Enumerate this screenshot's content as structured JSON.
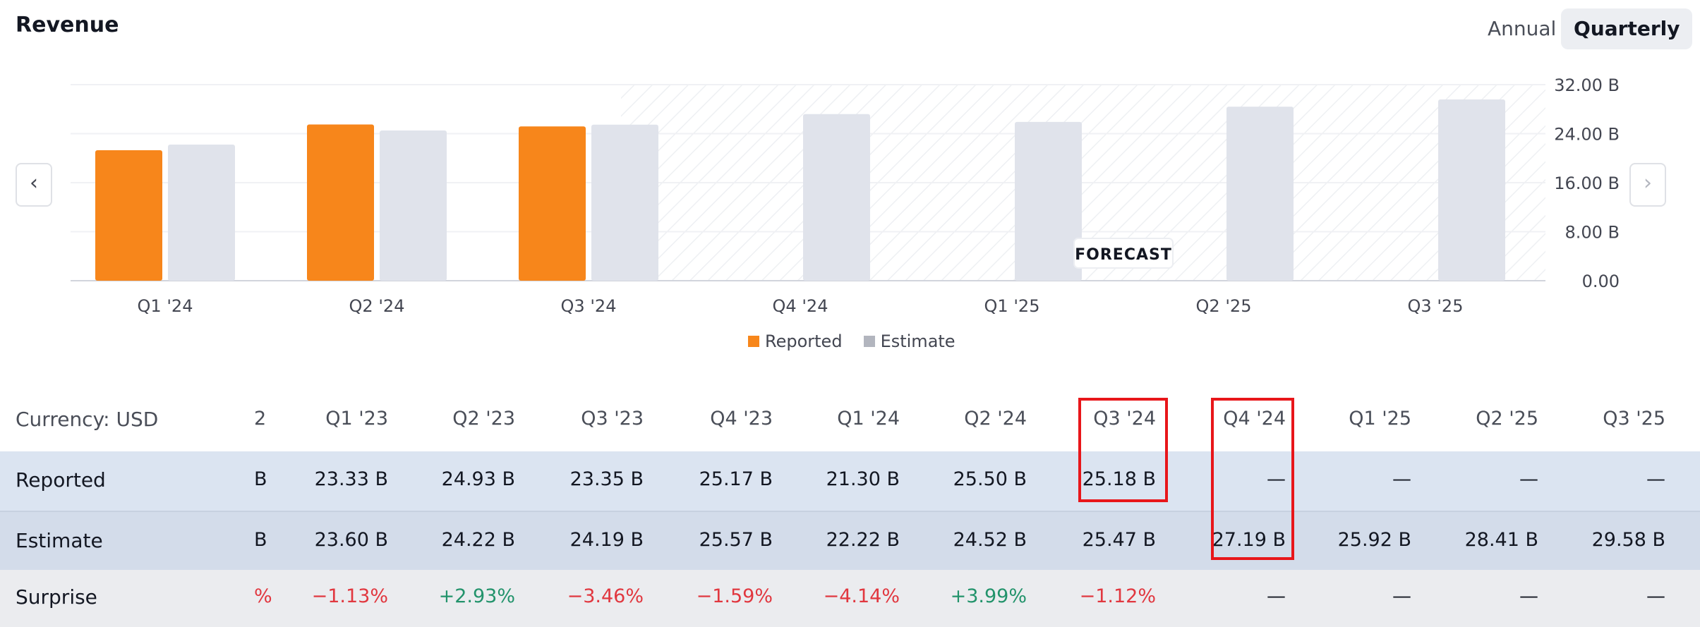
{
  "header": {
    "title": "Revenue",
    "toggle_annual": "Annual",
    "toggle_quarterly": "Quarterly"
  },
  "chart_data": {
    "type": "bar",
    "categories": [
      "Q1 '24",
      "Q2 '24",
      "Q3 '24",
      "Q4 '24",
      "Q1 '25",
      "Q2 '25",
      "Q3 '25"
    ],
    "series": [
      {
        "name": "Reported",
        "color": "#f7861b",
        "values": [
          21.3,
          25.5,
          25.18,
          null,
          null,
          null,
          null
        ]
      },
      {
        "name": "Estimate",
        "color": "#e0e3eb",
        "values": [
          22.22,
          24.52,
          25.47,
          27.19,
          25.92,
          28.41,
          29.58
        ]
      }
    ],
    "y_ticks": [
      "32.00 B",
      "24.00 B",
      "16.00 B",
      "8.00 B",
      "0.00"
    ],
    "ylim": [
      0,
      32
    ],
    "forecast_label": "FORECAST",
    "forecast_from": "Q4 '24",
    "legend_position": "bottom-center",
    "grid": true
  },
  "table": {
    "currency_label": "Currency: USD",
    "clipped_header": "2",
    "columns": [
      "Q1 '23",
      "Q2 '23",
      "Q3 '23",
      "Q4 '23",
      "Q1 '24",
      "Q2 '24",
      "Q3 '24",
      "Q4 '24",
      "Q1 '25",
      "Q2 '25",
      "Q3 '25"
    ],
    "rows": {
      "reported": {
        "label": "Reported",
        "clipped": "B",
        "values": [
          "23.33 B",
          "24.93 B",
          "23.35 B",
          "25.17 B",
          "21.30 B",
          "25.50 B",
          "25.18 B",
          "—",
          "—",
          "—",
          "—"
        ]
      },
      "estimate": {
        "label": "Estimate",
        "clipped": "B",
        "values": [
          "23.60 B",
          "24.22 B",
          "24.19 B",
          "25.57 B",
          "22.22 B",
          "24.52 B",
          "25.47 B",
          "27.19 B",
          "25.92 B",
          "28.41 B",
          "29.58 B"
        ]
      },
      "surprise": {
        "label": "Surprise",
        "clipped": "%",
        "values": [
          "−1.13%",
          "+2.93%",
          "−3.46%",
          "−1.59%",
          "−4.14%",
          "+3.99%",
          "−1.12%",
          "—",
          "—",
          "—",
          "—"
        ]
      }
    }
  },
  "colors": {
    "reported": "#f7861b",
    "estimate": "#e0e3eb",
    "highlight": "#e8161a",
    "positive": "#22936b",
    "negative": "#e1373f"
  }
}
